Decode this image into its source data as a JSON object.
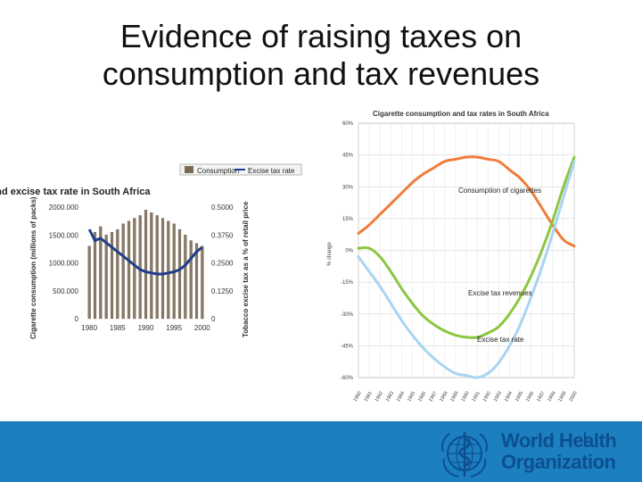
{
  "slide": {
    "title_line1": "Evidence of raising taxes on",
    "title_line2": "consumption and tax revenues"
  },
  "footer": {
    "org_line1": "World Health",
    "org_line2": "Organization",
    "accent_color": "#1c7fc0"
  },
  "chart_data": [
    {
      "type": "bar",
      "title": "Relationship between cigarette consumption and excise tax rate in South Africa",
      "legend": [
        "Consumption",
        "Excise tax rate"
      ],
      "legend_position": "top",
      "xlabel": "",
      "ylabel": "Cigarette consumption (millions of packs)",
      "y2label": "Tobacco excise tax as a % of retail price",
      "x_ticks": [
        "1980",
        "1985",
        "1990",
        "1995",
        "2000"
      ],
      "y_ticks": [
        "0",
        "500.000",
        "1000.000",
        "1500.000",
        "2000.000"
      ],
      "y2_ticks": [
        "0",
        "0.1250",
        "0.2500",
        "0.3750",
        "0.5000"
      ],
      "ylim": [
        0,
        2000000
      ],
      "y2lim": [
        0,
        0.5
      ],
      "years": [
        1980,
        1981,
        1982,
        1983,
        1984,
        1985,
        1986,
        1987,
        1988,
        1989,
        1990,
        1991,
        1992,
        1993,
        1994,
        1995,
        1996,
        1997,
        1998,
        1999,
        2000
      ],
      "series": [
        {
          "name": "Consumption",
          "kind": "bar",
          "color": "#b5a793",
          "values": [
            1300000,
            1550000,
            1650000,
            1500000,
            1550000,
            1600000,
            1700000,
            1750000,
            1800000,
            1850000,
            1950000,
            1900000,
            1850000,
            1800000,
            1750000,
            1700000,
            1600000,
            1500000,
            1400000,
            1350000,
            1300000
          ]
        },
        {
          "name": "Excise tax rate",
          "kind": "line",
          "color": "#1f3d8a",
          "values": [
            0.4,
            0.35,
            0.36,
            0.34,
            0.32,
            0.3,
            0.28,
            0.26,
            0.24,
            0.22,
            0.21,
            0.205,
            0.2,
            0.2,
            0.205,
            0.21,
            0.22,
            0.24,
            0.27,
            0.3,
            0.32
          ]
        }
      ]
    },
    {
      "type": "line",
      "title": "Cigarette consumption and tax rates in South Africa",
      "xlabel": "",
      "ylabel": "% change",
      "grid": true,
      "ylim": [
        -60,
        60
      ],
      "y_ticks": [
        "-60%",
        "-45%",
        "-30%",
        "-15%",
        "0%",
        "15%",
        "30%",
        "45%",
        "60%"
      ],
      "x": [
        "1980",
        "1981",
        "1982",
        "1983",
        "1984",
        "1985",
        "1986",
        "1987",
        "1988",
        "1989",
        "1990",
        "1991",
        "1992",
        "1993",
        "1994",
        "1995",
        "1996",
        "1997",
        "1998",
        "1999",
        "2000"
      ],
      "series": [
        {
          "name": "Consumption of cigarettes",
          "color": "#f07c3a",
          "values": [
            8,
            12,
            17,
            22,
            27,
            32,
            36,
            39,
            42,
            43,
            44,
            44,
            43,
            42,
            38,
            34,
            28,
            20,
            12,
            5,
            2
          ]
        },
        {
          "name": "Excise tax revenues",
          "color": "#8cc63f",
          "values": [
            1,
            1,
            -3,
            -10,
            -18,
            -25,
            -31,
            -35,
            -38,
            -40,
            -41,
            -41,
            -39,
            -36,
            -30,
            -22,
            -12,
            0,
            14,
            30,
            44
          ]
        },
        {
          "name": "Excise tax rate",
          "color": "#a9d4f0",
          "values": [
            -3,
            -10,
            -17,
            -25,
            -33,
            -40,
            -46,
            -51,
            -55,
            -58,
            -59,
            -60,
            -58,
            -53,
            -45,
            -35,
            -22,
            -8,
            8,
            25,
            42
          ]
        }
      ],
      "annotations": [
        "Consumption of cigarettes",
        "Excise tax revenues",
        "Excise tax rate"
      ]
    }
  ]
}
